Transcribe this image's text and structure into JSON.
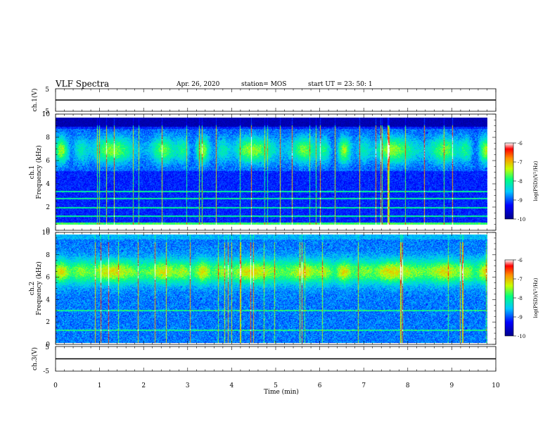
{
  "header": {
    "title": "VLF Spectra",
    "date": "Apr. 26, 2020",
    "station": "station= MOS",
    "start": "start  UT  =   23: 50: 1"
  },
  "chart_data": [
    {
      "type": "line",
      "name": "ch1-waveform",
      "ylabel": "ch.1(V)",
      "ylim": [
        -5,
        5
      ],
      "yticks": [
        "5",
        "-5"
      ],
      "x": [
        0,
        10
      ],
      "y": [
        0,
        0
      ]
    },
    {
      "type": "heatmap",
      "name": "ch1-spectrogram",
      "ylabel": "ch.1\nFrequency (kHz)",
      "xlim": [
        0,
        10
      ],
      "ylim": [
        0,
        10
      ],
      "yticks": [
        0,
        2,
        4,
        6,
        8,
        10
      ],
      "colorbar": {
        "label": "log(PSD)(V²/Hz)",
        "range": [
          -10,
          -6
        ],
        "ticks": [
          "-6",
          "-7",
          "-8",
          "-9",
          "-10"
        ]
      }
    },
    {
      "type": "heatmap",
      "name": "ch2-spectrogram",
      "ylabel": "ch.2\nFrequency (kHz)",
      "xlim": [
        0,
        10
      ],
      "ylim": [
        0,
        10
      ],
      "yticks": [
        0,
        2,
        4,
        6,
        8,
        10
      ],
      "colorbar": {
        "label": "log(PSD)(V²/Hz)",
        "range": [
          -10,
          -6
        ],
        "ticks": [
          "-6",
          "-7",
          "-8",
          "-9",
          "-10"
        ]
      }
    },
    {
      "type": "line",
      "name": "ch3-waveform",
      "ylabel": "ch.3(V)",
      "ylim": [
        -5,
        5
      ],
      "yticks": [
        "5",
        "-5"
      ],
      "x": [
        0,
        10
      ],
      "y": [
        0,
        0
      ]
    }
  ],
  "xaxis": {
    "label": "Time (min)",
    "ticks": [
      "0",
      "1",
      "2",
      "3",
      "4",
      "5",
      "6",
      "7",
      "8",
      "9",
      "10"
    ]
  }
}
